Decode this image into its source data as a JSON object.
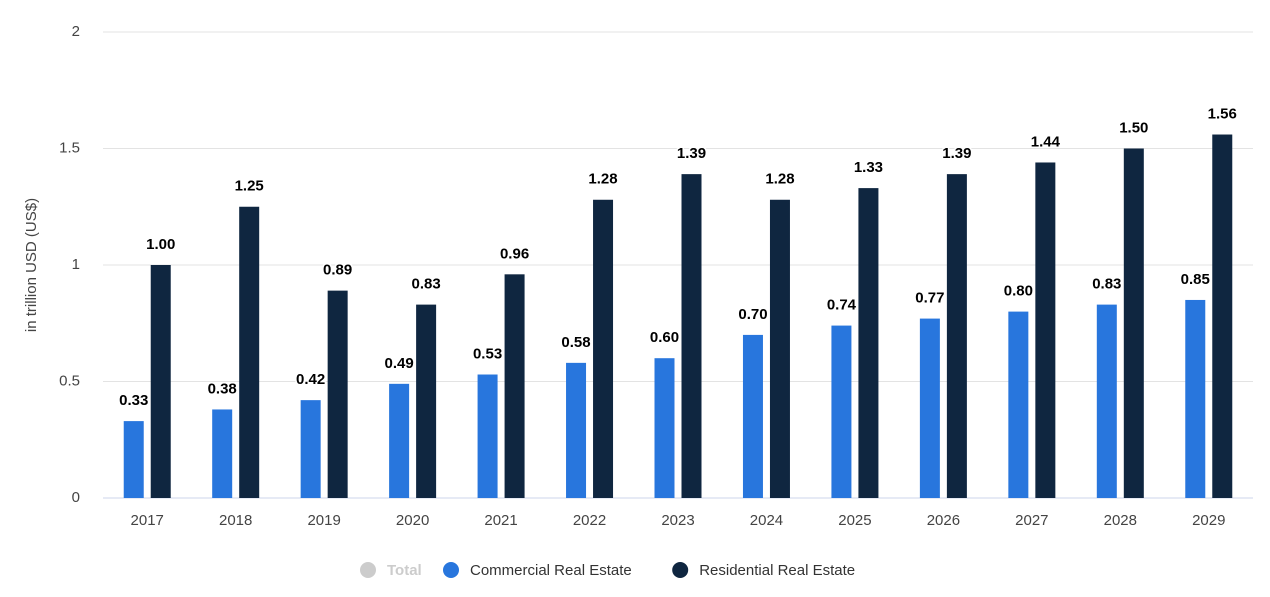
{
  "chart_data": {
    "type": "bar",
    "y_axis_label": "in trillion USD (US$)",
    "categories": [
      "2017",
      "2018",
      "2019",
      "2020",
      "2021",
      "2022",
      "2023",
      "2024",
      "2025",
      "2026",
      "2027",
      "2028",
      "2029"
    ],
    "series": [
      {
        "name": "Commercial Real Estate",
        "color": "#2876dd",
        "values": [
          0.33,
          0.38,
          0.42,
          0.49,
          0.53,
          0.58,
          0.6,
          0.7,
          0.74,
          0.77,
          0.8,
          0.83,
          0.85
        ],
        "value_labels": [
          "0.33",
          "0.38",
          "0.42",
          "0.49",
          "0.53",
          "0.58",
          "0.60",
          "0.70",
          "0.74",
          "0.77",
          "0.80",
          "0.83",
          "0.85"
        ]
      },
      {
        "name": "Residential Real Estate",
        "color": "#0f2640",
        "values": [
          1.0,
          1.25,
          0.89,
          0.83,
          0.96,
          1.28,
          1.39,
          1.28,
          1.33,
          1.39,
          1.44,
          1.5,
          1.56
        ],
        "value_labels": [
          "1.00",
          "1.25",
          "0.89",
          "0.83",
          "0.96",
          "1.28",
          "1.39",
          "1.28",
          "1.33",
          "1.39",
          "1.44",
          "1.50",
          "1.56"
        ]
      }
    ],
    "inactive_legend": [
      {
        "name": "Total",
        "color": "#cccccc"
      }
    ],
    "ylim": [
      0,
      2
    ],
    "yticks": [
      0,
      0.5,
      1,
      1.5,
      2
    ],
    "grid": true,
    "legend": "bottom"
  }
}
